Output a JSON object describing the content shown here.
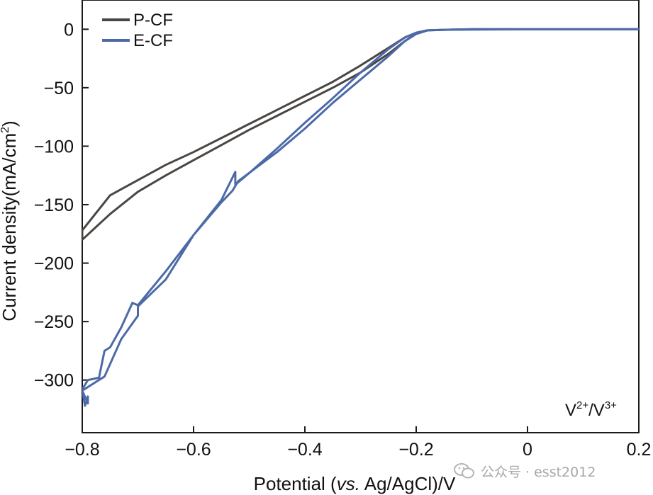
{
  "chart_data": {
    "type": "line",
    "title": "",
    "xlabel": "Potential (vs. Ag/AgCl)/V",
    "xlabel_parts": {
      "prefix": "Potential (",
      "italic": "vs.",
      "suffix": " Ag/AgCl)/V"
    },
    "ylabel": "Current density(mA/cm²)",
    "ylabel_parts": {
      "base": "Current density(mA/cm",
      "sup": "2",
      "close": ")"
    },
    "xlim": [
      -0.8,
      0.2
    ],
    "ylim": [
      -345,
      25
    ],
    "x_ticks": [
      -0.8,
      -0.6,
      -0.4,
      -0.2,
      0,
      0.2
    ],
    "x_tick_labels": [
      "−0.8",
      "−0.6",
      "−0.4",
      "−0.2",
      "0",
      "0.2"
    ],
    "y_ticks": [
      0,
      -50,
      -100,
      -150,
      -200,
      -250,
      -300
    ],
    "y_tick_labels": [
      "0",
      "−50",
      "−100",
      "−150",
      "−200",
      "−250",
      "−300"
    ],
    "annotation": {
      "v1": "V",
      "sup1": "2+",
      "slash": "/V",
      "sup2": "3+"
    },
    "legend_position": "top-left",
    "series": [
      {
        "name": "P-CF",
        "color": "#4a4643",
        "x": [
          0.2,
          0.0,
          -0.1,
          -0.15,
          -0.18,
          -0.2,
          -0.22,
          -0.25,
          -0.3,
          -0.35,
          -0.4,
          -0.45,
          -0.5,
          -0.55,
          -0.6,
          -0.65,
          -0.7,
          -0.75,
          -0.8,
          -0.8,
          -0.75,
          -0.7,
          -0.65,
          -0.6,
          -0.55,
          -0.5,
          -0.45,
          -0.4,
          -0.35,
          -0.3,
          -0.25,
          -0.22,
          -0.2,
          -0.18,
          -0.15,
          -0.1,
          0.0,
          0.2
        ],
        "y": [
          0,
          0,
          0,
          -0.5,
          -1,
          -3,
          -7,
          -16,
          -31,
          -45,
          -57,
          -69,
          -81,
          -93,
          -105,
          -116,
          -129,
          -142,
          -172,
          -180,
          -158,
          -139,
          -125,
          -112,
          -99,
          -86,
          -74,
          -62,
          -50,
          -37,
          -21,
          -10,
          -4,
          -1,
          -0.5,
          0,
          0,
          0
        ]
      },
      {
        "name": "E-CF",
        "color": "#4c6aa8",
        "x": [
          0.2,
          0.0,
          -0.1,
          -0.15,
          -0.18,
          -0.2,
          -0.22,
          -0.25,
          -0.3,
          -0.35,
          -0.4,
          -0.45,
          -0.5,
          -0.525,
          -0.525,
          -0.55,
          -0.6,
          -0.65,
          -0.7,
          -0.71,
          -0.73,
          -0.75,
          -0.76,
          -0.77,
          -0.79,
          -0.8,
          -0.795,
          -0.79,
          -0.79,
          -0.8,
          -0.78,
          -0.76,
          -0.73,
          -0.7,
          -0.7,
          -0.65,
          -0.6,
          -0.55,
          -0.53,
          -0.52,
          -0.45,
          -0.4,
          -0.35,
          -0.3,
          -0.25,
          -0.22,
          -0.2,
          -0.18,
          -0.15,
          0.0,
          0.2
        ],
        "y": [
          0,
          0,
          0,
          -0.5,
          -1,
          -3,
          -7,
          -17,
          -37,
          -59,
          -80,
          -102,
          -123,
          -133,
          -122,
          -146,
          -176,
          -207,
          -236,
          -234,
          -255,
          -272,
          -275,
          -298,
          -300,
          -308,
          -322,
          -314,
          -320,
          -309,
          -303,
          -297,
          -265,
          -245,
          -237,
          -214,
          -176,
          -148,
          -138,
          -130,
          -105,
          -85,
          -63,
          -43,
          -23,
          -10,
          -4,
          -1,
          -0.5,
          0,
          0
        ]
      }
    ]
  },
  "watermark": {
    "text": "公众号 · esst2012",
    "icon": "wechat-icon"
  }
}
